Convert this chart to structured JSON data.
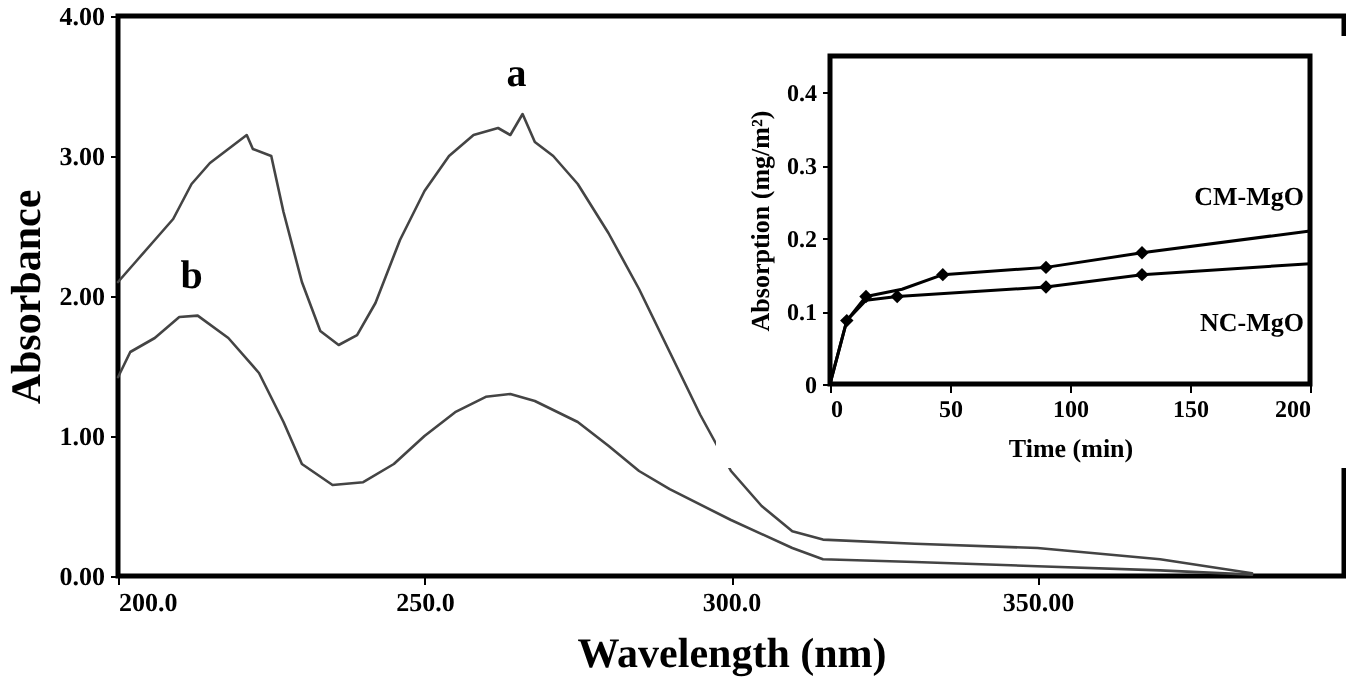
{
  "chart_data": [
    {
      "type": "line",
      "xlabel": "Wavelength (nm)",
      "ylabel": "Absorbance",
      "xlim": [
        200,
        400
      ],
      "ylim": [
        0,
        4
      ],
      "xticks": [
        {
          "value": 200,
          "label": "200.0"
        },
        {
          "value": 250,
          "label": "250.0"
        },
        {
          "value": 300,
          "label": "300.0"
        },
        {
          "value": 350,
          "label": "350.00"
        }
      ],
      "yticks": [
        {
          "value": 0,
          "label": "0.00"
        },
        {
          "value": 1,
          "label": "1.00"
        },
        {
          "value": 2,
          "label": "2.00"
        },
        {
          "value": 3,
          "label": "3.00"
        },
        {
          "value": 4,
          "label": "4.00"
        }
      ],
      "grid": false,
      "series": [
        {
          "name": "a",
          "color": "#444444",
          "x": [
            200,
            203,
            206,
            209,
            212,
            215,
            218,
            221,
            222,
            225,
            227,
            230,
            233,
            236,
            239,
            242,
            246,
            250,
            254,
            258,
            262,
            264,
            266,
            268,
            271,
            275,
            280,
            285,
            290,
            295,
            300,
            305,
            310,
            315,
            330,
            350,
            370,
            385
          ],
          "values": [
            2.1,
            2.25,
            2.4,
            2.55,
            2.8,
            2.95,
            3.05,
            3.15,
            3.05,
            3.0,
            2.6,
            2.1,
            1.75,
            1.65,
            1.72,
            1.95,
            2.4,
            2.75,
            3.0,
            3.15,
            3.2,
            3.15,
            3.3,
            3.1,
            3.0,
            2.8,
            2.45,
            2.05,
            1.6,
            1.15,
            0.75,
            0.5,
            0.32,
            0.26,
            0.23,
            0.2,
            0.12,
            0.02
          ]
        },
        {
          "name": "b",
          "color": "#444444",
          "x": [
            200,
            202,
            206,
            210,
            213,
            218,
            223,
            227,
            230,
            235,
            240,
            245,
            250,
            255,
            260,
            264,
            268,
            275,
            280,
            285,
            290,
            300,
            310,
            315,
            330,
            350,
            370,
            385
          ],
          "values": [
            1.42,
            1.6,
            1.7,
            1.85,
            1.86,
            1.7,
            1.45,
            1.1,
            0.8,
            0.65,
            0.67,
            0.8,
            1.0,
            1.17,
            1.28,
            1.3,
            1.25,
            1.1,
            0.93,
            0.75,
            0.62,
            0.4,
            0.2,
            0.12,
            0.1,
            0.07,
            0.04,
            0.01
          ]
        }
      ]
    },
    {
      "type": "scatter",
      "xlabel": "Time (min)",
      "ylabel": "Absorption (mg/m²)",
      "xlim": [
        0,
        200
      ],
      "ylim": [
        0,
        0.45
      ],
      "xticks": [
        0,
        50,
        100,
        150,
        200
      ],
      "yticks": [
        0,
        0.1,
        0.2,
        0.3,
        0.4
      ],
      "grid": false,
      "series": [
        {
          "name": "CM-MgO",
          "marker": "diamond",
          "color": "#000000",
          "x": [
            7,
            15,
            47,
            90,
            130
          ],
          "values": [
            0.087,
            0.12,
            0.15,
            0.16,
            0.18
          ]
        },
        {
          "name": "NC-MgO",
          "marker": "diamond",
          "color": "#000000",
          "x": [
            28,
            90,
            130
          ],
          "values": [
            0.12,
            0.133,
            0.15
          ]
        },
        {
          "type": "line",
          "marker": "none",
          "color": "#000000",
          "x": [
            0,
            7,
            15,
            30,
            47,
            90,
            130,
            200
          ],
          "values": [
            0,
            0.087,
            0.12,
            0.13,
            0.15,
            0.16,
            0.18,
            0.21
          ]
        },
        {
          "type": "line",
          "marker": "none",
          "color": "#000000",
          "x": [
            0,
            7,
            15,
            28,
            90,
            130,
            200
          ],
          "values": [
            0,
            0.087,
            0.115,
            0.12,
            0.133,
            0.15,
            0.165
          ]
        }
      ]
    }
  ]
}
